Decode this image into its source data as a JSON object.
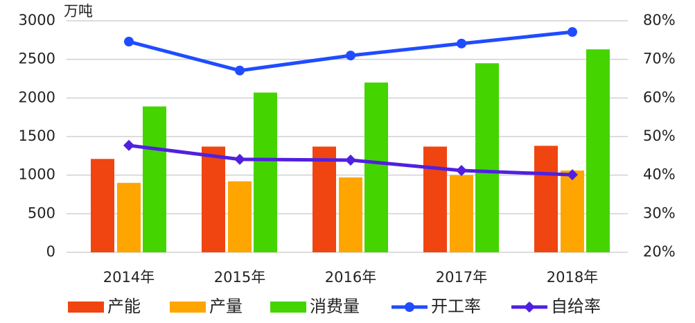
{
  "chart_data": {
    "type": "bar",
    "y_unit": "万吨",
    "categories": [
      "2014年",
      "2015年",
      "2016年",
      "2017年",
      "2018年"
    ],
    "series": [
      {
        "name": "产能",
        "color": "#f04510",
        "values": [
          1210,
          1370,
          1370,
          1370,
          1380
        ]
      },
      {
        "name": "产量",
        "color": "#ffa500",
        "values": [
          900,
          920,
          970,
          1000,
          1060
        ]
      },
      {
        "name": "消费量",
        "color": "#44d400",
        "values": [
          1890,
          2070,
          2200,
          2450,
          2630
        ]
      },
      {
        "name": "开工率",
        "type": "line",
        "marker": "circle",
        "axis": "y2",
        "color": "#1f4cff",
        "values": [
          74.6,
          67.1,
          71.0,
          74.1,
          77.1
        ]
      },
      {
        "name": "自给率",
        "type": "line",
        "marker": "diamond",
        "axis": "y2",
        "color": "#5020e0",
        "values": [
          47.7,
          44.1,
          43.9,
          41.2,
          40.1
        ]
      }
    ],
    "ylim": [
      0,
      3000
    ],
    "yticks": [
      0,
      500,
      1000,
      1500,
      2000,
      2500,
      3000
    ],
    "y2lim": [
      20,
      80
    ],
    "y2ticks": [
      {
        "value": 20,
        "label": "20%"
      },
      {
        "value": 30,
        "label": "30%"
      },
      {
        "value": 40,
        "label": "40%"
      },
      {
        "value": 50,
        "label": "50%"
      },
      {
        "value": 60,
        "label": "60%"
      },
      {
        "value": 70,
        "label": "70%"
      },
      {
        "value": 80,
        "label": "80%"
      }
    ],
    "grid": true,
    "legend": "bottom"
  }
}
